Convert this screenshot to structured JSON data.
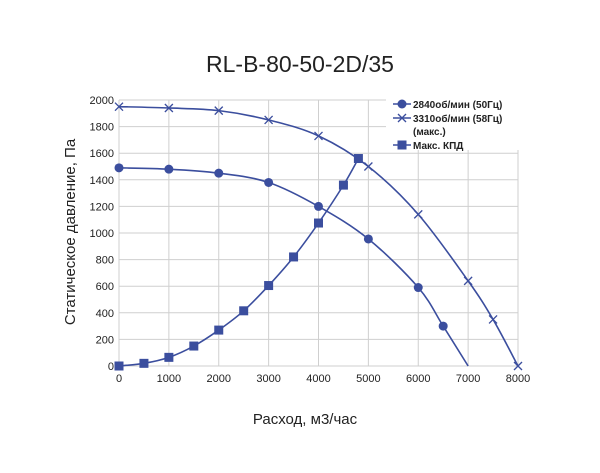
{
  "chart_data": {
    "type": "line",
    "title": "RL-B-80-50-2D/35",
    "xlabel": "Расход, м3/час",
    "ylabel": "Статическое давление, Па",
    "xlim": [
      0,
      8000
    ],
    "ylim": [
      0,
      2000
    ],
    "xticks": [
      0,
      1000,
      2000,
      3000,
      4000,
      5000,
      6000,
      7000,
      8000
    ],
    "yticks": [
      0,
      200,
      400,
      600,
      800,
      1000,
      1200,
      1400,
      1600,
      1800,
      2000
    ],
    "grid": true,
    "legend_position": "top-right",
    "color": "#3b4e9e",
    "series": [
      {
        "name": "2840об/мин (50Гц)",
        "marker": "circle",
        "x": [
          0,
          1000,
          2000,
          3000,
          4000,
          5000,
          6000,
          6500
        ],
        "y": [
          1490,
          1480,
          1450,
          1380,
          1200,
          955,
          590,
          300
        ],
        "line_end": [
          7000,
          0
        ]
      },
      {
        "name": "3310об/мин  (58Гц)",
        "name_line2": "(макс.)",
        "marker": "x",
        "x": [
          0,
          1000,
          2000,
          3000,
          4000,
          5000,
          6000,
          7000,
          7500,
          8000
        ],
        "y": [
          1950,
          1940,
          1920,
          1850,
          1730,
          1500,
          1140,
          640,
          350,
          0
        ]
      },
      {
        "name": "Макс. КПД",
        "marker": "square",
        "x": [
          0,
          500,
          1000,
          1500,
          2000,
          2500,
          3000,
          3500,
          4000,
          4500,
          4800
        ],
        "y": [
          0,
          20,
          65,
          150,
          270,
          415,
          605,
          820,
          1075,
          1360,
          1560
        ]
      }
    ]
  }
}
